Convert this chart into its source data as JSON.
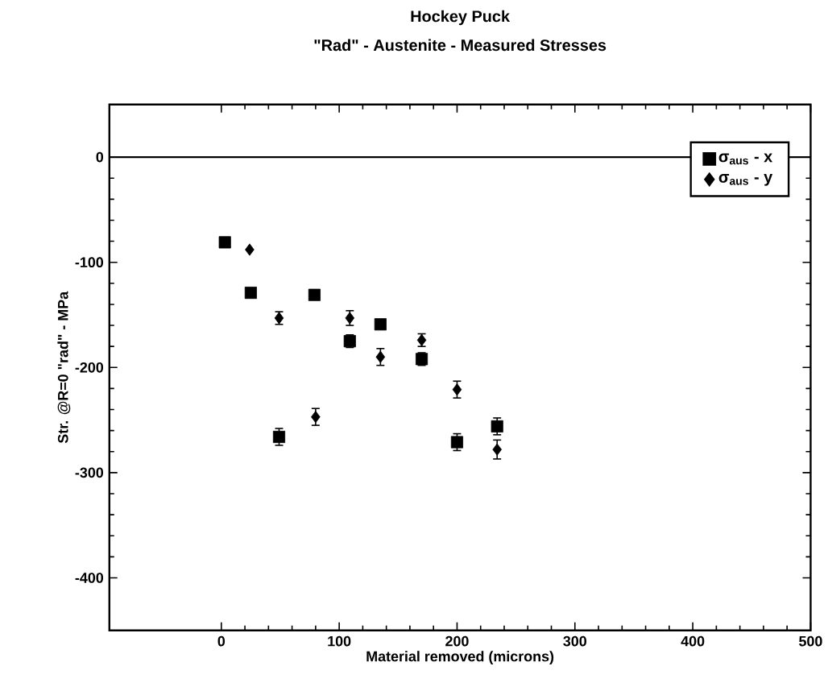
{
  "chart_data": {
    "type": "scatter",
    "title": "Hockey Puck",
    "subtitle": "\"Rad\" - Austenite - Measured Stresses",
    "xlabel": "Material removed (microns)",
    "ylabel": "Str. @R=0 \"rad\" - MPa",
    "xlim": [
      -95,
      500
    ],
    "ylim": [
      -450,
      50
    ],
    "xticks": [
      0,
      100,
      200,
      300,
      400,
      500
    ],
    "yticks": [
      -400,
      -300,
      -200,
      -100,
      0
    ],
    "legend": "top right",
    "grid": false,
    "ref_lines": [
      {
        "axis": "y",
        "value": 0,
        "color": "#000000"
      }
    ],
    "series": [
      {
        "name": "σ$_{aus}$ - x",
        "color": "#000000",
        "marker": "square",
        "x": [
          3,
          25,
          49,
          79,
          109,
          135,
          170,
          200,
          234
        ],
        "values": [
          -81,
          -129,
          -266,
          -131,
          -175,
          -159,
          -192,
          -271,
          -256
        ],
        "errors": [
          null,
          null,
          8,
          null,
          6,
          null,
          6,
          8,
          8
        ]
      },
      {
        "name": "σ$_{aus}$ - y",
        "color": "#000000",
        "marker": "diamond",
        "x": [
          24,
          49,
          80,
          109,
          135,
          170,
          200,
          234
        ],
        "values": [
          -88,
          -153,
          -247,
          -153,
          -190,
          -174,
          -221,
          -278
        ],
        "errors": [
          null,
          6,
          8,
          7,
          8,
          6,
          8,
          9
        ]
      }
    ]
  }
}
